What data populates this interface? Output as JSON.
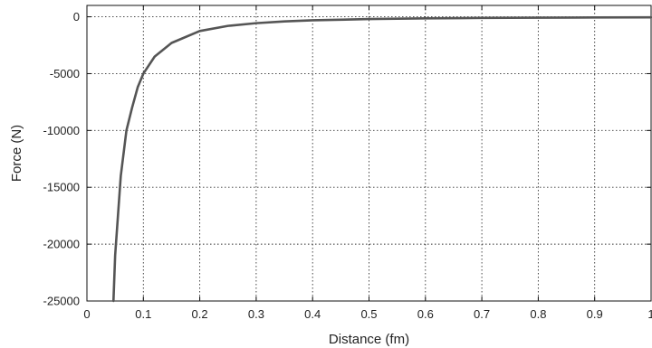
{
  "chart_data": {
    "type": "line",
    "title": "",
    "xlabel": "Distance (fm)",
    "ylabel": "Force (N)",
    "xlim": [
      0,
      1
    ],
    "ylim": [
      -25000,
      1000
    ],
    "xticks": [
      0,
      0.1,
      0.2,
      0.3,
      0.4,
      0.5,
      0.6,
      0.7,
      0.8,
      0.9,
      1
    ],
    "xtick_labels": [
      "0",
      "0.1",
      "0.2",
      "0.3",
      "0.4",
      "0.5",
      "0.6",
      "0.7",
      "0.8",
      "0.9",
      "1"
    ],
    "yticks": [
      -25000,
      -20000,
      -15000,
      -10000,
      -5000,
      0
    ],
    "ytick_labels": [
      "-25000",
      "-20000",
      "-15000",
      "-10000",
      "-5000",
      "0"
    ],
    "grid": true,
    "line_color": "#555555",
    "series": [
      {
        "x": [
          0.047,
          0.05,
          0.055,
          0.06,
          0.07,
          0.08,
          0.09,
          0.1,
          0.12,
          0.15,
          0.2,
          0.25,
          0.3,
          0.35,
          0.4,
          0.5,
          0.6,
          0.7,
          0.8,
          0.9,
          1.0
        ],
        "y": [
          -25000,
          -21000,
          -17500,
          -14000,
          -10000,
          -8000,
          -6200,
          -5000,
          -3500,
          -2300,
          -1250,
          -800,
          -560,
          -410,
          -310,
          -200,
          -140,
          -100,
          -80,
          -60,
          -50
        ]
      }
    ]
  }
}
